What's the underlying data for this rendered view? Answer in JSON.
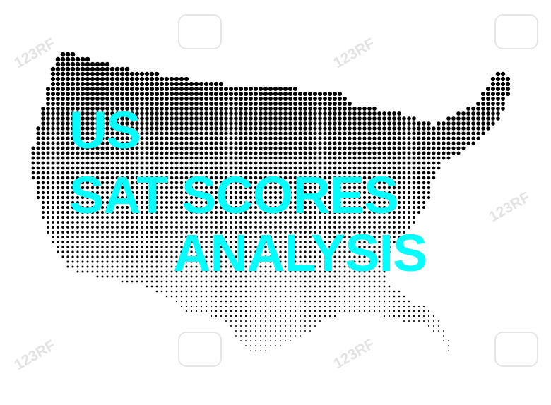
{
  "title": {
    "line1": "US",
    "line2": "SAT SCORES",
    "line3": "ANALYSIS"
  },
  "colors": {
    "title": "#00ffff",
    "dots_dark": "#000000",
    "background": "#ffffff",
    "watermark": "#e3e3e3"
  },
  "watermark": {
    "text": "123RF"
  }
}
